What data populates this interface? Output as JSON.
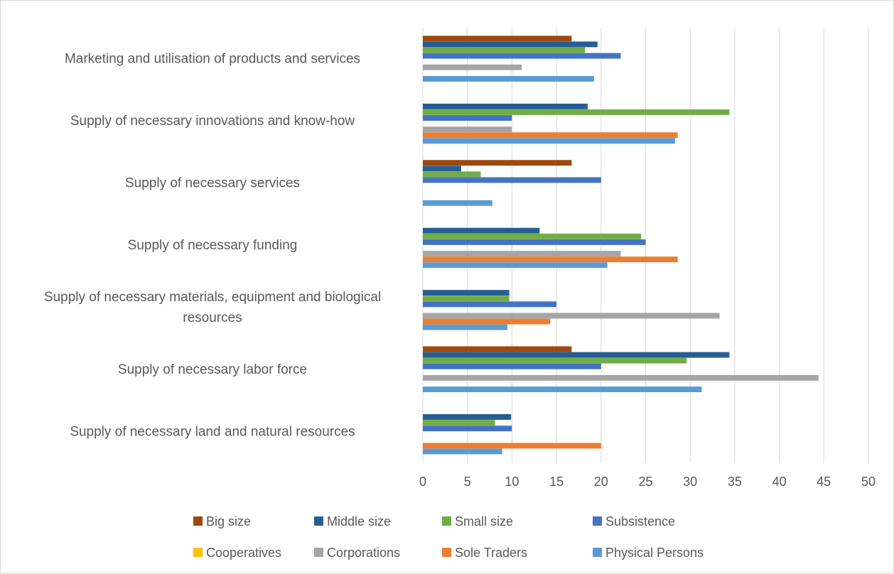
{
  "chart_data": {
    "type": "bar",
    "orientation": "horizontal",
    "title": "",
    "xlabel": "",
    "ylabel": "",
    "xlim": [
      0,
      50
    ],
    "x_ticks": [
      "0",
      "5",
      "10",
      "15",
      "20",
      "25",
      "30",
      "35",
      "40",
      "45",
      "50"
    ],
    "grid": true,
    "legend_position": "bottom",
    "categories": [
      [
        "Marketing and utilisation of products and services"
      ],
      [
        "Supply of necessary innovations and know-how"
      ],
      [
        "Supply of necessary services"
      ],
      [
        "Supply of necessary funding"
      ],
      [
        "Supply of necessary materials, equipment and biological",
        "resources"
      ],
      [
        "Supply of necessary labor force"
      ],
      [
        "Supply of necessary land and natural resources"
      ]
    ],
    "series": [
      {
        "name": "Big size",
        "color": "#9e480e",
        "values": [
          16.7,
          0,
          16.7,
          0,
          0,
          16.7,
          0
        ]
      },
      {
        "name": "Middle size",
        "color": "#255e91",
        "values": [
          19.6,
          18.5,
          4.3,
          13.1,
          9.7,
          34.4,
          9.9
        ]
      },
      {
        "name": "Small size",
        "color": "#70ad47",
        "values": [
          18.2,
          34.4,
          6.5,
          24.5,
          9.7,
          29.6,
          8.1
        ]
      },
      {
        "name": "Subsistence",
        "color": "#4472c4",
        "values": [
          22.2,
          10.0,
          20.0,
          25.0,
          15.0,
          20.0,
          10.0
        ]
      },
      {
        "name": "Cooperatives",
        "color": "#ffc000",
        "values": [
          0,
          0,
          0,
          0,
          0,
          0,
          0
        ]
      },
      {
        "name": "Corporations",
        "color": "#a5a5a5",
        "values": [
          11.1,
          10.0,
          0,
          22.2,
          33.3,
          44.4,
          0
        ]
      },
      {
        "name": "Sole Traders",
        "color": "#ed7d31",
        "values": [
          0,
          28.6,
          0,
          28.6,
          14.3,
          0,
          20.0
        ]
      },
      {
        "name": "Physical Persons",
        "color": "#5b9bd5",
        "values": [
          19.2,
          28.3,
          7.8,
          20.7,
          9.5,
          31.3,
          8.9
        ]
      }
    ]
  }
}
